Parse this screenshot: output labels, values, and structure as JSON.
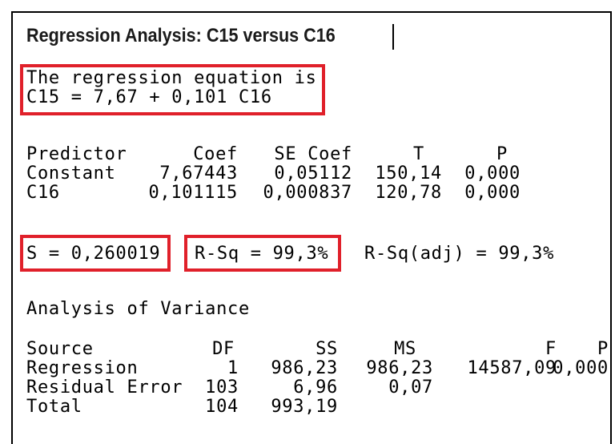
{
  "title": "Regression Analysis: C15 versus C16",
  "equation": {
    "heading": "The regression equation is",
    "formula": "C15 = 7,67 + 0,101 C16"
  },
  "coefficients": {
    "header": [
      "Predictor",
      "Coef",
      "SE Coef",
      "T",
      "P"
    ],
    "rows": [
      [
        "Constant",
        "7,67443",
        "0,05112",
        "150,14",
        "0,000"
      ],
      [
        "C16",
        "0,101115",
        "0,000837",
        "120,78",
        "0,000"
      ]
    ]
  },
  "summary": {
    "s": "S = 0,260019",
    "r_sq": "R-Sq = 99,3%",
    "r_sq_adj": "R-Sq(adj) = 99,3%"
  },
  "anova": {
    "title": "Analysis of Variance",
    "header": [
      "Source",
      "DF",
      "SS",
      "MS",
      "F",
      "P"
    ],
    "rows": [
      [
        "Regression",
        "1",
        "986,23",
        "986,23",
        "14587,09",
        "0,000"
      ],
      [
        "Residual Error",
        "103",
        "6,96",
        "0,07"
      ],
      [
        "Total",
        "104",
        "993,19"
      ]
    ]
  }
}
